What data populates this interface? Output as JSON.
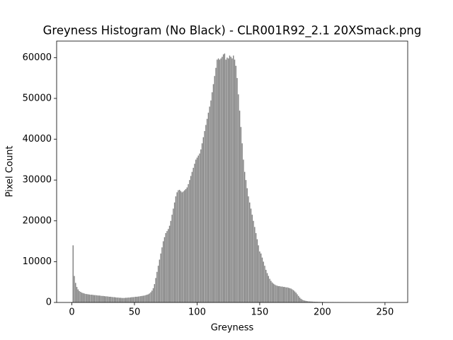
{
  "chart_data": {
    "type": "bar",
    "title": "Greyness Histogram (No Black) - CLR001R92_2.1 20XSmack.png",
    "xlabel": "Greyness",
    "ylabel": "Pixel Count",
    "color": "#808080",
    "x": [
      1,
      2,
      3,
      4,
      5,
      6,
      7,
      8,
      9,
      10,
      11,
      12,
      13,
      14,
      15,
      16,
      17,
      18,
      19,
      20,
      21,
      22,
      23,
      24,
      25,
      26,
      27,
      28,
      29,
      30,
      31,
      32,
      33,
      34,
      35,
      36,
      37,
      38,
      39,
      40,
      41,
      42,
      43,
      44,
      45,
      46,
      47,
      48,
      49,
      50,
      51,
      52,
      53,
      54,
      55,
      56,
      57,
      58,
      59,
      60,
      61,
      62,
      63,
      64,
      65,
      66,
      67,
      68,
      69,
      70,
      71,
      72,
      73,
      74,
      75,
      76,
      77,
      78,
      79,
      80,
      81,
      82,
      83,
      84,
      85,
      86,
      87,
      88,
      89,
      90,
      91,
      92,
      93,
      94,
      95,
      96,
      97,
      98,
      99,
      100,
      101,
      102,
      103,
      104,
      105,
      106,
      107,
      108,
      109,
      110,
      111,
      112,
      113,
      114,
      115,
      116,
      117,
      118,
      119,
      120,
      121,
      122,
      123,
      124,
      125,
      126,
      127,
      128,
      129,
      130,
      131,
      132,
      133,
      134,
      135,
      136,
      137,
      138,
      139,
      140,
      141,
      142,
      143,
      144,
      145,
      146,
      147,
      148,
      149,
      150,
      151,
      152,
      153,
      154,
      155,
      156,
      157,
      158,
      159,
      160,
      161,
      162,
      163,
      164,
      165,
      166,
      167,
      168,
      169,
      170,
      171,
      172,
      173,
      174,
      175,
      176,
      177,
      178,
      179,
      180,
      181,
      182,
      183,
      184,
      185,
      186,
      187,
      188,
      189,
      190,
      191,
      192,
      193,
      194,
      195,
      196,
      197,
      198,
      199,
      200,
      201,
      202,
      203,
      204,
      205,
      206,
      207,
      208,
      209,
      210,
      211,
      212,
      213,
      214,
      215,
      216,
      217,
      218,
      219,
      220,
      221,
      222,
      223,
      224,
      225,
      226,
      227,
      228,
      229,
      230,
      231,
      232,
      233,
      234,
      235,
      236,
      237,
      238,
      239,
      240,
      241,
      242,
      243,
      244,
      245,
      246,
      247,
      248,
      249,
      250,
      251,
      252,
      253,
      254,
      255
    ],
    "values": [
      14000,
      6500,
      4800,
      3800,
      3200,
      2800,
      2600,
      2400,
      2300,
      2200,
      2100,
      2050,
      2000,
      1950,
      1900,
      1900,
      1850,
      1800,
      1800,
      1750,
      1700,
      1700,
      1650,
      1600,
      1600,
      1550,
      1500,
      1500,
      1450,
      1400,
      1400,
      1350,
      1300,
      1300,
      1250,
      1200,
      1200,
      1150,
      1150,
      1100,
      1100,
      1100,
      1150,
      1150,
      1200,
      1200,
      1250,
      1300,
      1300,
      1350,
      1400,
      1400,
      1450,
      1500,
      1550,
      1600,
      1650,
      1700,
      1800,
      1900,
      2000,
      2200,
      2500,
      2900,
      3500,
      4500,
      6000,
      7500,
      9000,
      10500,
      12000,
      13500,
      15000,
      16000,
      17000,
      17500,
      18000,
      18800,
      20000,
      21500,
      23000,
      24500,
      26000,
      27000,
      27500,
      27600,
      27300,
      27000,
      27200,
      27500,
      27800,
      28200,
      29000,
      30000,
      31000,
      32000,
      33000,
      34000,
      35000,
      35500,
      36000,
      36500,
      37500,
      39000,
      40500,
      42000,
      43500,
      45000,
      46500,
      48000,
      49500,
      51500,
      53500,
      55500,
      57500,
      59500,
      59800,
      59500,
      59800,
      60200,
      60800,
      61000,
      59500,
      60000,
      59800,
      60500,
      60200,
      59800,
      60500,
      59500,
      58000,
      55000,
      51000,
      47000,
      43000,
      39000,
      35000,
      32000,
      30000,
      28000,
      26000,
      24500,
      23000,
      21500,
      20000,
      18500,
      17000,
      15500,
      14000,
      12500,
      12000,
      11000,
      10000,
      9000,
      8000,
      7200,
      6500,
      5800,
      5300,
      4900,
      4600,
      4400,
      4200,
      4100,
      4000,
      4000,
      3900,
      3900,
      3800,
      3800,
      3700,
      3700,
      3600,
      3500,
      3400,
      3200,
      3000,
      2700,
      2400,
      2000,
      1600,
      1200,
      900,
      700,
      550,
      450,
      380,
      320,
      280,
      250,
      230,
      210,
      190,
      170,
      160,
      150,
      140,
      130,
      120,
      110,
      100,
      95,
      90,
      85,
      80,
      75,
      70,
      65,
      60,
      55,
      50,
      48,
      45,
      42,
      40,
      38,
      35,
      32,
      30,
      28,
      26,
      24,
      22,
      20,
      18,
      16,
      15,
      14,
      13,
      12,
      11,
      10,
      9,
      8,
      8,
      7,
      7,
      6,
      6,
      5,
      5,
      5,
      4,
      4,
      3,
      3,
      3,
      2,
      2,
      2,
      2,
      1,
      1,
      1,
      1
    ],
    "bar_width": 0.8,
    "xlim": [
      -12.14,
      268.14
    ],
    "xticks": [
      0,
      50,
      100,
      150,
      200,
      250
    ],
    "ylim": [
      0,
      64050
    ],
    "yticks": [
      0,
      10000,
      20000,
      30000,
      40000,
      50000,
      60000
    ]
  }
}
